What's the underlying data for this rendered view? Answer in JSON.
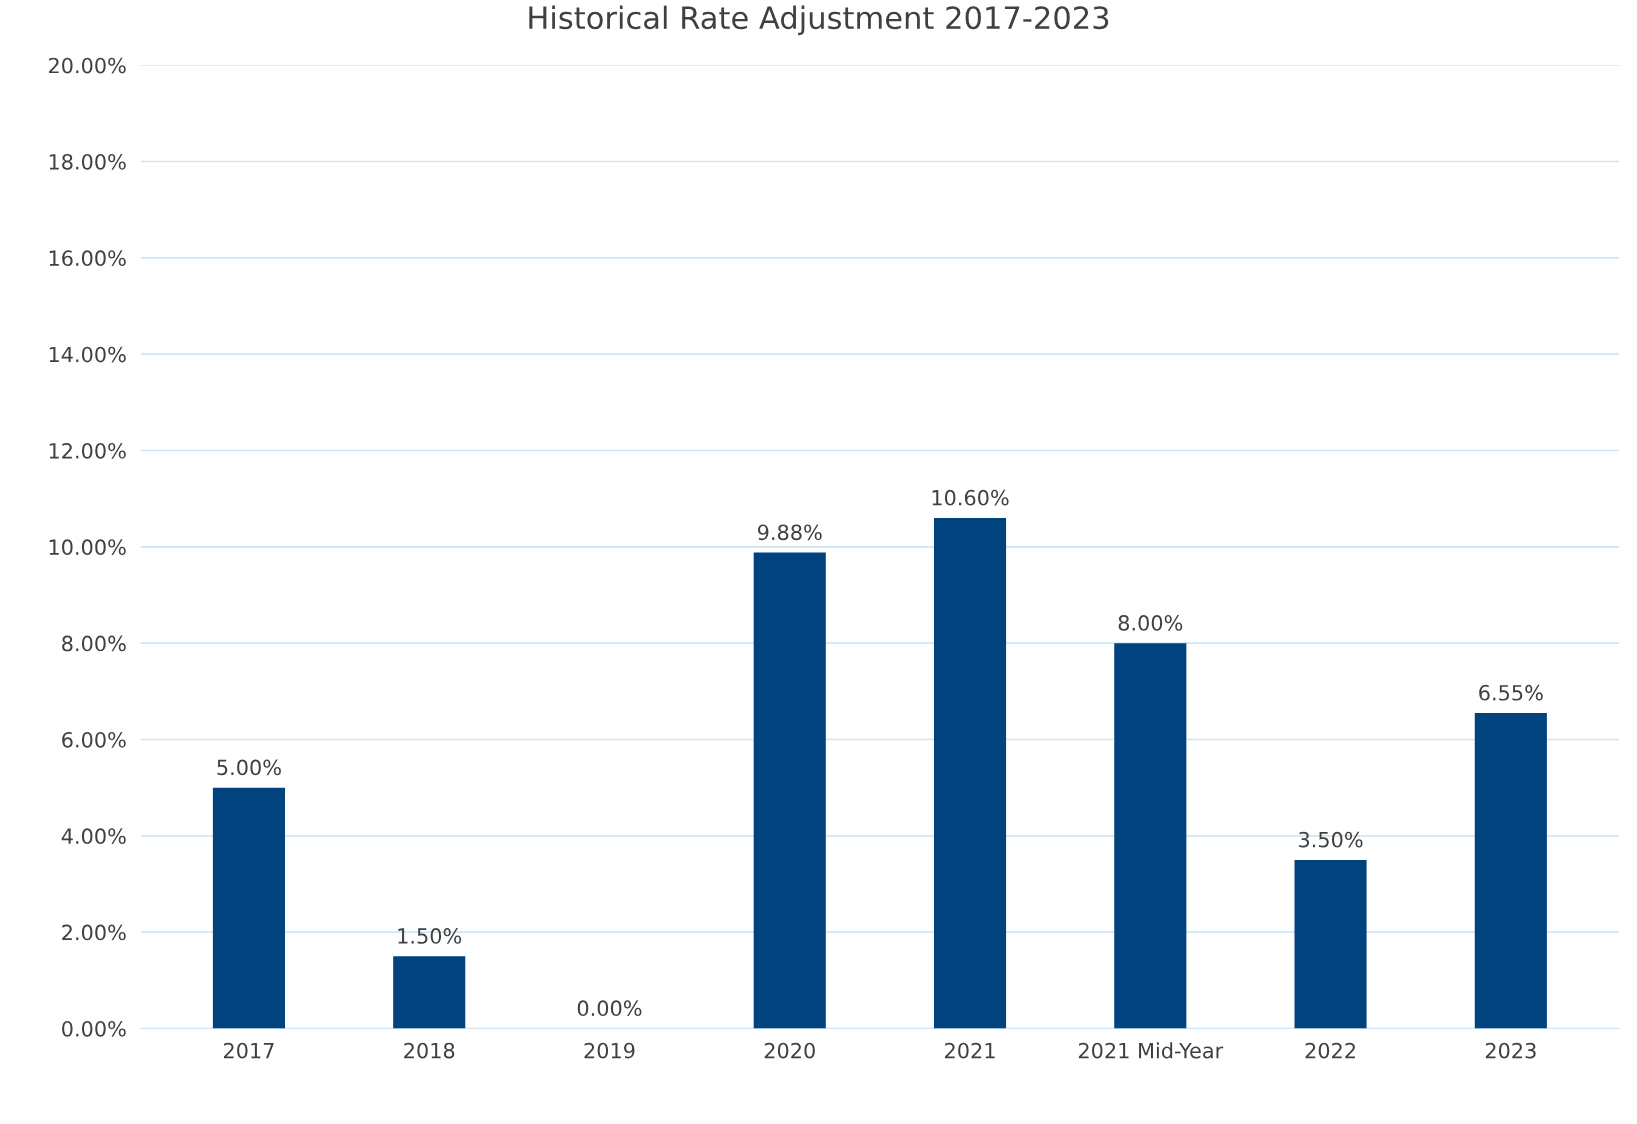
{
  "chart_data": {
    "type": "bar",
    "title": "Historical Rate Adjustment 2017-2023",
    "categories": [
      "2017",
      "2018",
      "2019",
      "2020",
      "2021",
      "2021 Mid-Year",
      "2022",
      "2023"
    ],
    "values": [
      5,
      1.5,
      0,
      9.88,
      10.6,
      8,
      3.5,
      6.55
    ],
    "value_labels": [
      "5.00%",
      "1.50%",
      "0.00%",
      "9.88%",
      "10.60%",
      "8.00%",
      "3.50%",
      "6.55%"
    ],
    "color": "#00437f",
    "ylim": [
      0,
      20
    ],
    "yticks": [
      {
        "value": 0,
        "label": "0.00%"
      },
      {
        "value": 2,
        "label": "2.00%"
      },
      {
        "value": 4,
        "label": "4.00%"
      },
      {
        "value": 6,
        "label": "6.00%"
      },
      {
        "value": 8,
        "label": "8.00%"
      },
      {
        "value": 10,
        "label": "10.00%"
      },
      {
        "value": 12,
        "label": "12.00%"
      },
      {
        "value": 14,
        "label": "14.00%"
      },
      {
        "value": 16,
        "label": "16.00%"
      },
      {
        "value": 18,
        "label": "18.00%"
      },
      {
        "value": 20,
        "label": "20.00%"
      }
    ],
    "grid": "y",
    "legend": false
  }
}
